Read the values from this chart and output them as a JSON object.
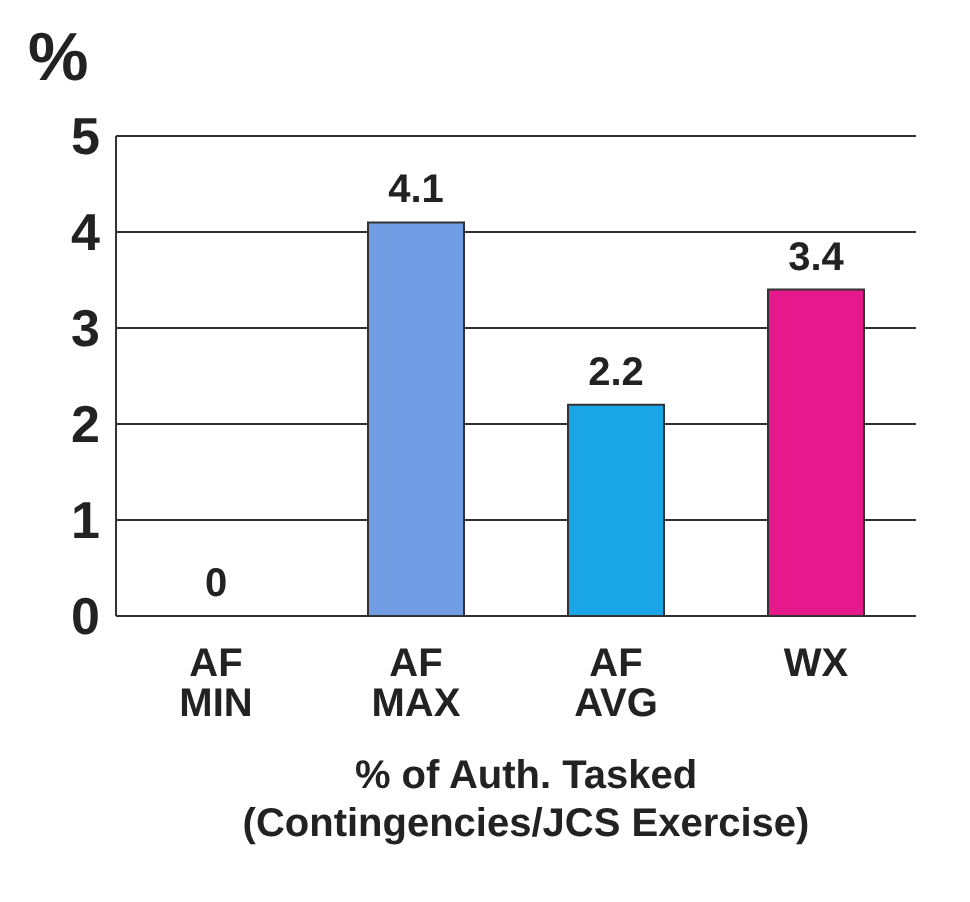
{
  "chart_data": {
    "type": "bar",
    "categories": [
      "AF\nMIN",
      "AF\nMAX",
      "AF\nAVG",
      "WX"
    ],
    "values": [
      0,
      4.1,
      2.2,
      3.4
    ],
    "colors": [
      "#3a6fd8",
      "#6f9ce2",
      "#1aa6e6",
      "#e5198c"
    ],
    "ylabel": "%",
    "xlabel": "% of Auth. Tasked\n(Contingencies/JCS Exercise)",
    "ylim": [
      0,
      5
    ],
    "yticks": [
      0,
      1,
      2,
      3,
      4,
      5
    ],
    "grid": "y",
    "data_labels": true
  }
}
